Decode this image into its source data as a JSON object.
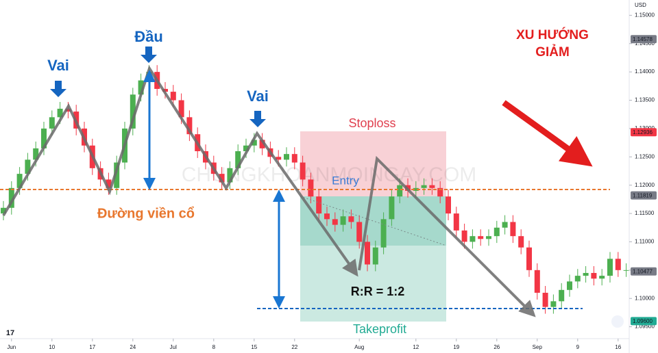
{
  "chart_data": {
    "type": "candlestick",
    "currency": "USD",
    "watermark": "CHUNGKHOANMOINGAY.COM",
    "annotations": {
      "left_shoulder": "Vai",
      "head": "Đầu",
      "right_shoulder": "Vai",
      "neckline": "Đường viền cổ",
      "stoploss": "Stoploss",
      "entry": "Entry",
      "risk_reward": "R:R = 1:2",
      "takeprofit": "Takeprofit",
      "trend": [
        "XU HƯỚNG",
        "GIẢM"
      ]
    },
    "up_color": "#4caf50",
    "down_color": "#f23645",
    "grid": false,
    "ylim": [
      1.0929,
      1.1527
    ],
    "yticks": [
      {
        "value": 1.15,
        "label": "1.15000"
      },
      {
        "value": 1.145,
        "label": "1.14500"
      },
      {
        "value": 1.14,
        "label": "1.14000"
      },
      {
        "value": 1.135,
        "label": "1.13500"
      },
      {
        "value": 1.13,
        "label": "1.13000"
      },
      {
        "value": 1.125,
        "label": "1.12500"
      },
      {
        "value": 1.12,
        "label": "1.12000"
      },
      {
        "value": 1.115,
        "label": "1.11500"
      },
      {
        "value": 1.11,
        "label": "1.11000"
      },
      {
        "value": 1.105,
        "label": "1.10500"
      },
      {
        "value": 1.1,
        "label": "1.10000"
      },
      {
        "value": 1.095,
        "label": "1.09500"
      }
    ],
    "price_tags": [
      {
        "value": 1.14578,
        "label": "1.14578",
        "color": "#787b86"
      },
      {
        "value": 1.12936,
        "label": "1.12936",
        "color": "#f23645"
      },
      {
        "value": 1.11819,
        "label": "1.11819",
        "color": "#787b86"
      },
      {
        "value": 1.10477,
        "label": "1.10477",
        "color": "#787b86"
      },
      {
        "value": 1.096,
        "label": "1.09600",
        "color": "#22ab94"
      }
    ],
    "categories": [
      null,
      "Jun",
      null,
      null,
      null,
      null,
      "10",
      null,
      null,
      null,
      null,
      "17",
      null,
      null,
      null,
      null,
      "24",
      null,
      null,
      null,
      null,
      "Jul",
      null,
      null,
      null,
      null,
      "8",
      null,
      null,
      null,
      null,
      "15",
      null,
      null,
      null,
      null,
      "22",
      null,
      null,
      null,
      null,
      null,
      null,
      null,
      "Aug",
      null,
      null,
      null,
      null,
      null,
      null,
      "12",
      null,
      null,
      null,
      null,
      "19",
      null,
      null,
      null,
      null,
      "26",
      null,
      null,
      null,
      null,
      "Sep",
      null,
      null,
      null,
      null,
      "9",
      null,
      null,
      null,
      null,
      "16",
      null
    ],
    "open": [
      1.115,
      1.116,
      1.1195,
      1.122,
      1.1245,
      1.1265,
      1.13,
      1.132,
      1.1335,
      1.133,
      1.13,
      1.127,
      1.123,
      1.121,
      1.1195,
      1.124,
      1.13,
      1.136,
      1.1385,
      1.14,
      1.137,
      1.1365,
      1.135,
      1.132,
      1.129,
      1.126,
      1.124,
      1.122,
      1.1205,
      1.123,
      1.126,
      1.127,
      1.128,
      1.1265,
      1.125,
      1.1245,
      1.1255,
      1.124,
      1.121,
      1.118,
      1.115,
      1.114,
      1.113,
      1.1145,
      1.1135,
      1.11,
      1.106,
      1.109,
      1.114,
      1.118,
      1.12,
      1.119,
      1.1195,
      1.12,
      1.1195,
      1.118,
      1.115,
      1.112,
      1.11,
      1.111,
      1.1105,
      1.111,
      1.1125,
      1.1135,
      1.111,
      1.109,
      1.105,
      1.101,
      1.0985,
      1.0995,
      1.1015,
      1.103,
      1.104,
      1.1045,
      1.1035,
      1.104,
      1.107,
      1.105
    ],
    "high": [
      1.1172,
      1.1207,
      1.1232,
      1.1257,
      1.1277,
      1.1312,
      1.1332,
      1.1347,
      1.1347,
      1.1342,
      1.1312,
      1.1282,
      1.1242,
      1.1222,
      1.1252,
      1.1312,
      1.1372,
      1.1397,
      1.1412,
      1.1412,
      1.1382,
      1.1377,
      1.1362,
      1.1332,
      1.1302,
      1.1272,
      1.1252,
      1.1232,
      1.1242,
      1.1272,
      1.1282,
      1.1292,
      1.1292,
      1.1277,
      1.1262,
      1.1267,
      1.1267,
      1.1252,
      1.1222,
      1.1192,
      1.1162,
      1.1152,
      1.1157,
      1.1157,
      1.1147,
      1.1112,
      1.1102,
      1.1152,
      1.1192,
      1.1212,
      1.1212,
      1.1207,
      1.1212,
      1.1212,
      1.1207,
      1.1192,
      1.1162,
      1.1132,
      1.1122,
      1.1122,
      1.1122,
      1.1137,
      1.1147,
      1.1147,
      1.1122,
      1.1102,
      1.1062,
      1.1022,
      1.1007,
      1.1027,
      1.1042,
      1.1052,
      1.1057,
      1.1057,
      1.1052,
      1.1082,
      1.1082,
      1.1062
    ],
    "low": [
      1.1138,
      1.1148,
      1.1183,
      1.1208,
      1.1233,
      1.1253,
      1.1288,
      1.1308,
      1.1318,
      1.1288,
      1.1258,
      1.1218,
      1.1198,
      1.1183,
      1.1183,
      1.1228,
      1.1288,
      1.1348,
      1.1373,
      1.1358,
      1.1353,
      1.1338,
      1.1308,
      1.1278,
      1.1248,
      1.1228,
      1.1208,
      1.1193,
      1.1193,
      1.1218,
      1.1248,
      1.1258,
      1.1253,
      1.1238,
      1.1233,
      1.1233,
      1.1228,
      1.1198,
      1.1168,
      1.1138,
      1.1128,
      1.1118,
      1.1118,
      1.1123,
      1.1088,
      1.1048,
      1.1048,
      1.1078,
      1.1128,
      1.1168,
      1.1178,
      1.1178,
      1.1183,
      1.1183,
      1.1168,
      1.1138,
      1.1108,
      1.1088,
      1.1088,
      1.1093,
      1.1093,
      1.1098,
      1.1113,
      1.1098,
      1.1078,
      1.1038,
      1.0998,
      1.0973,
      1.0973,
      1.0983,
      1.1003,
      1.1018,
      1.1028,
      1.1023,
      1.1023,
      1.1028,
      1.1038,
      1.1038
    ],
    "close": [
      1.116,
      1.1195,
      1.122,
      1.1245,
      1.1265,
      1.13,
      1.132,
      1.1335,
      1.133,
      1.13,
      1.127,
      1.123,
      1.121,
      1.1195,
      1.124,
      1.13,
      1.136,
      1.1385,
      1.14,
      1.137,
      1.1365,
      1.135,
      1.132,
      1.129,
      1.126,
      1.124,
      1.122,
      1.1205,
      1.123,
      1.126,
      1.127,
      1.128,
      1.1265,
      1.125,
      1.1245,
      1.1255,
      1.124,
      1.121,
      1.118,
      1.115,
      1.114,
      1.113,
      1.1145,
      1.1135,
      1.11,
      1.106,
      1.109,
      1.114,
      1.118,
      1.12,
      1.119,
      1.1195,
      1.12,
      1.1195,
      1.118,
      1.115,
      1.112,
      1.11,
      1.111,
      1.1105,
      1.111,
      1.1125,
      1.1135,
      1.111,
      1.109,
      1.105,
      1.101,
      1.0985,
      1.0995,
      1.1015,
      1.103,
      1.104,
      1.1045,
      1.1035,
      1.104,
      1.107,
      1.105,
      1.105
    ]
  }
}
